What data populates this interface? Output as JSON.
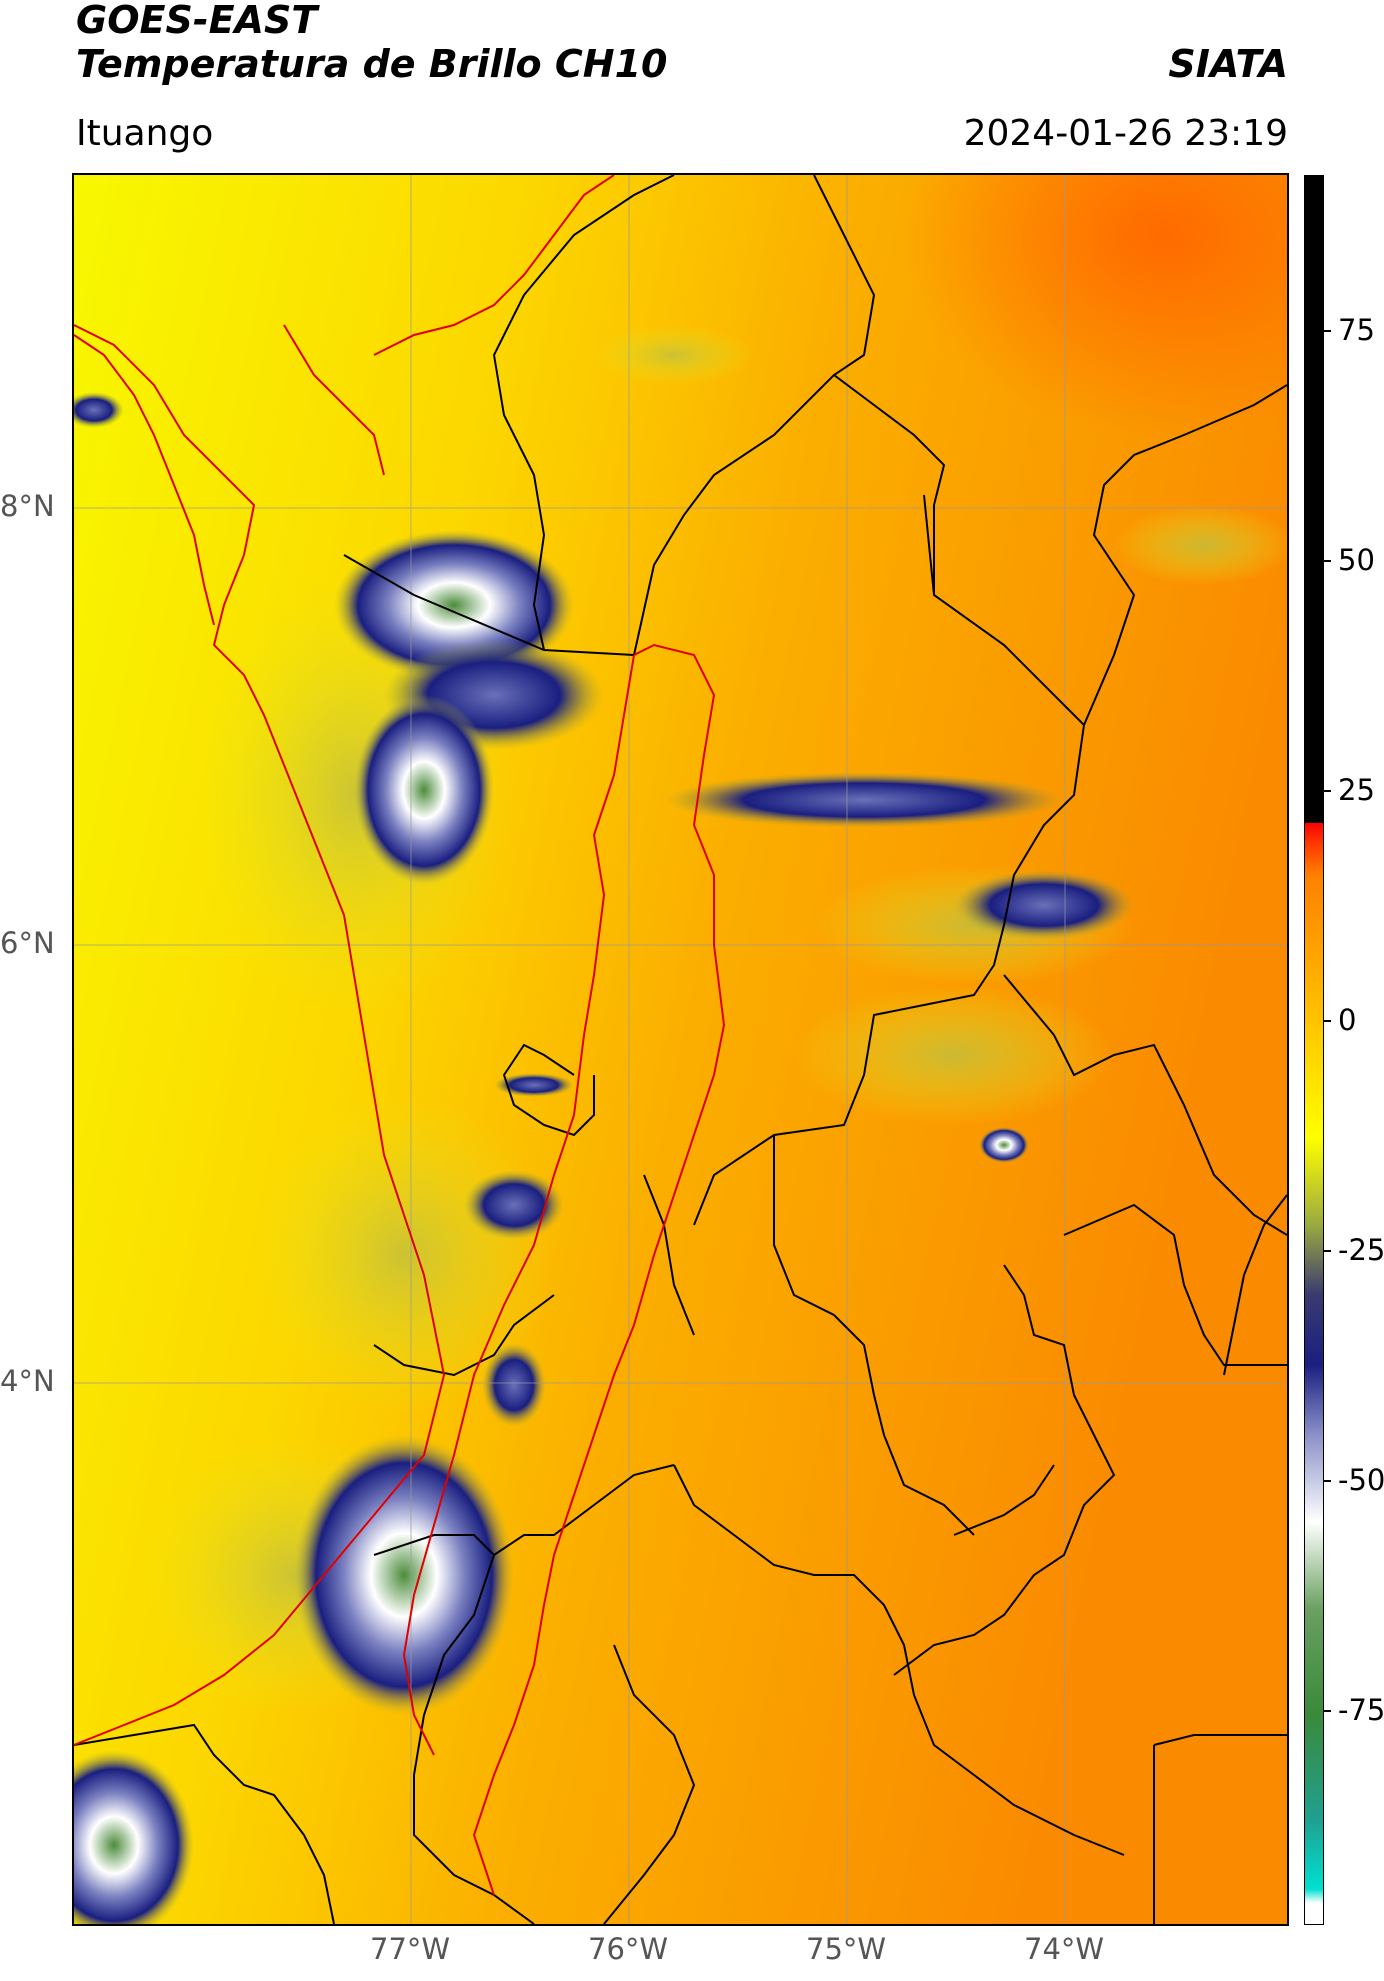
{
  "header": {
    "satellite": "GOES-EAST",
    "product": "Temperatura de Brillo CH10",
    "organization": "SIATA",
    "location": "Ituango",
    "datetime": "2024-01-26 23:19"
  },
  "map": {
    "lat_labels": [
      "8°N",
      "6°N",
      "4°N"
    ],
    "lon_labels": [
      "77°W",
      "76°W",
      "75°W",
      "74°W"
    ],
    "colors": {
      "border_national": "#000000",
      "border_region": "#e00000",
      "gridline": "#999999"
    }
  },
  "colorbar": {
    "tick_labels": [
      "75",
      "50",
      "25",
      "0",
      "-25",
      "-50",
      "-75"
    ],
    "colors": [
      "#ffffff",
      "#00e0d0",
      "#20a090",
      "#3a8a3a",
      "#6aa060",
      "#ffffff",
      "#8a90c8",
      "#1a1f80",
      "#3a3a70",
      "#9aaa40",
      "#ffff00",
      "#ffc000",
      "#ff8000",
      "#ff3000",
      "#ff0000",
      "#000000"
    ]
  }
}
